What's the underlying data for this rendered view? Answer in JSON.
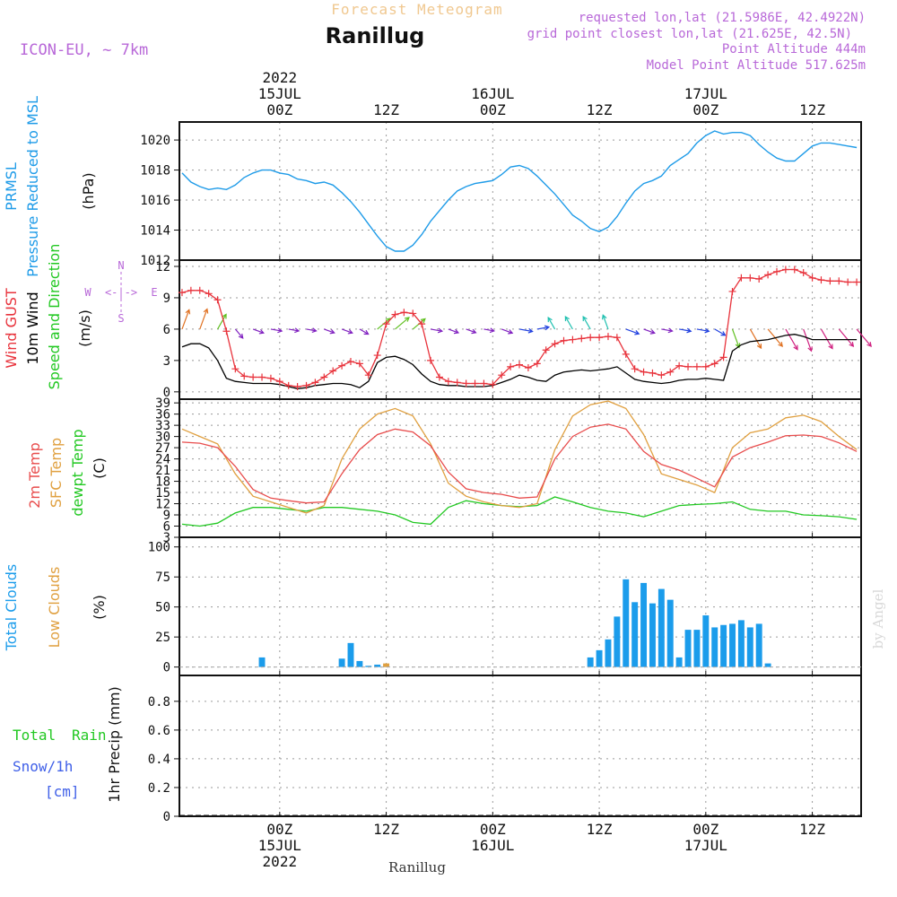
{
  "header": {
    "title_top": "Forecast Meteogram",
    "place": "Ranillug",
    "model": "ICON-EU, ~ 7km",
    "requested": "requested lon,lat (21.5986E, 42.4922N)",
    "grid_point": "grid point closest lon,lat (21.625E, 42.5N)",
    "point_alt": "Point Altitude 444m",
    "model_alt": "Model Point Altitude 517.625m",
    "credit": "by Angel",
    "bottom_place": "Ranillug"
  },
  "time_axis": {
    "top_labels": [
      {
        "day": "15JUL",
        "year": "2022",
        "hour": "00Z",
        "t": 24
      },
      {
        "day": "",
        "year": "",
        "hour": "12Z",
        "t": 36
      },
      {
        "day": "16JUL",
        "year": "",
        "hour": "00Z",
        "t": 48
      },
      {
        "day": "",
        "year": "",
        "hour": "12Z",
        "t": 60
      },
      {
        "day": "17JUL",
        "year": "",
        "hour": "00Z",
        "t": 72
      },
      {
        "day": "",
        "year": "",
        "hour": "12Z",
        "t": 84
      }
    ],
    "t_range": [
      12.7,
      89.5
    ]
  },
  "colors": {
    "pressure": "#1e9be8",
    "gust": "#e8333c",
    "wind": "#000000",
    "temp": "#e84c4c",
    "sfc": "#e0a040",
    "dew": "#22c822",
    "clouds": "#1b9ceb",
    "low_clouds": "#e0a040",
    "label_purple": "#b868d8",
    "rain_green": "#22c822",
    "snow_blue": "#4060e8"
  },
  "chart_data": [
    {
      "type": "line",
      "panel": "pressure",
      "label_line1": "PRMSL",
      "label_line2": "Pressure Reduced to MSL",
      "unit": "(hPa)",
      "ylim": [
        1012,
        1021.2
      ],
      "yticks": [
        "1012",
        "1014",
        "1016",
        "1018",
        "1020"
      ],
      "series": [
        {
          "name": "PRMSL",
          "x": [
            13,
            14,
            15,
            16,
            17,
            18,
            19,
            20,
            21,
            22,
            23,
            24,
            25,
            26,
            27,
            28,
            29,
            30,
            31,
            32,
            33,
            34,
            35,
            36,
            37,
            38,
            39,
            40,
            41,
            42,
            43,
            44,
            45,
            46,
            47,
            48,
            49,
            50,
            51,
            52,
            53,
            54,
            55,
            56,
            57,
            58,
            59,
            60,
            61,
            62,
            63,
            64,
            65,
            66,
            67,
            68,
            69,
            70,
            71,
            72,
            73,
            74,
            75,
            76,
            77,
            78,
            79,
            80,
            81,
            82,
            83,
            84,
            85,
            86,
            87,
            88,
            89
          ],
          "values": [
            1017.8,
            1017.2,
            1016.9,
            1016.7,
            1016.8,
            1016.7,
            1017.0,
            1017.5,
            1017.8,
            1018.0,
            1018.0,
            1017.8,
            1017.7,
            1017.4,
            1017.3,
            1017.1,
            1017.2,
            1017.0,
            1016.5,
            1015.9,
            1015.2,
            1014.4,
            1013.6,
            1012.9,
            1012.6,
            1012.6,
            1013.0,
            1013.7,
            1014.6,
            1015.3,
            1016.0,
            1016.6,
            1016.9,
            1017.1,
            1017.2,
            1017.3,
            1017.7,
            1018.2,
            1018.3,
            1018.1,
            1017.6,
            1017.0,
            1016.4,
            1015.7,
            1015.0,
            1014.6,
            1014.1,
            1013.9,
            1014.2,
            1014.9,
            1015.8,
            1016.6,
            1017.1,
            1017.3,
            1017.6,
            1018.3,
            1018.7,
            1019.1,
            1019.8,
            1020.3,
            1020.6,
            1020.4,
            1020.5,
            1020.5,
            1020.3,
            1019.7,
            1019.2,
            1018.8,
            1018.6,
            1018.6,
            1019.1,
            1019.6,
            1019.8,
            1019.8,
            1019.7,
            1019.6,
            1019.5
          ]
        }
      ]
    },
    {
      "type": "line",
      "panel": "wind",
      "label_gust": "Wind GUST",
      "label_wind": "10m Wind",
      "label_dir": "Speed and Direction",
      "unit": "(m/s)",
      "compass_n": "N",
      "compass_w": "W",
      "compass_e": "E",
      "compass_s": "S",
      "ylim": [
        -0.7,
        12.6
      ],
      "yticks": [
        "0",
        "3",
        "6",
        "9",
        "12"
      ],
      "series": [
        {
          "name": "Wind GUST",
          "x": [
            13,
            14,
            15,
            16,
            17,
            18,
            19,
            20,
            21,
            22,
            23,
            24,
            25,
            26,
            27,
            28,
            29,
            30,
            31,
            32,
            33,
            34,
            35,
            36,
            37,
            38,
            39,
            40,
            41,
            42,
            43,
            44,
            45,
            46,
            47,
            48,
            49,
            50,
            51,
            52,
            53,
            54,
            55,
            56,
            57,
            58,
            59,
            60,
            61,
            62,
            63,
            64,
            65,
            66,
            67,
            68,
            69,
            70,
            71,
            72,
            73,
            74,
            75,
            76,
            77,
            78,
            79,
            80,
            81,
            82,
            83,
            84,
            85,
            86,
            87,
            88,
            89
          ],
          "values": [
            9.5,
            9.7,
            9.7,
            9.4,
            8.8,
            5.8,
            2.2,
            1.5,
            1.4,
            1.4,
            1.3,
            1.0,
            0.6,
            0.5,
            0.6,
            0.9,
            1.4,
            2.0,
            2.5,
            2.9,
            2.7,
            1.6,
            3.5,
            6.5,
            7.4,
            7.6,
            7.5,
            6.5,
            3.0,
            1.4,
            1.0,
            0.9,
            0.8,
            0.8,
            0.8,
            0.7,
            1.6,
            2.4,
            2.6,
            2.3,
            2.7,
            4.0,
            4.6,
            4.9,
            5.0,
            5.1,
            5.2,
            5.2,
            5.3,
            5.2,
            3.6,
            2.2,
            1.9,
            1.8,
            1.6,
            1.9,
            2.5,
            2.4,
            2.4,
            2.4,
            2.7,
            3.3,
            9.6,
            10.9,
            10.9,
            10.8,
            11.2,
            11.5,
            11.7,
            11.7,
            11.4,
            10.9,
            10.7,
            10.6,
            10.6,
            10.5,
            10.5
          ]
        },
        {
          "name": "10m Wind",
          "x": [
            13,
            14,
            15,
            16,
            17,
            18,
            19,
            20,
            21,
            22,
            23,
            24,
            25,
            26,
            27,
            28,
            29,
            30,
            31,
            32,
            33,
            34,
            35,
            36,
            37,
            38,
            39,
            40,
            41,
            42,
            43,
            44,
            45,
            46,
            47,
            48,
            49,
            50,
            51,
            52,
            53,
            54,
            55,
            56,
            57,
            58,
            59,
            60,
            61,
            62,
            63,
            64,
            65,
            66,
            67,
            68,
            69,
            70,
            71,
            72,
            73,
            74,
            75,
            76,
            77,
            78,
            79,
            80,
            81,
            82,
            83,
            84,
            85,
            86,
            87,
            88,
            89
          ],
          "values": [
            4.3,
            4.6,
            4.6,
            4.2,
            3.0,
            1.3,
            1.0,
            0.9,
            0.8,
            0.8,
            0.8,
            0.7,
            0.5,
            0.3,
            0.4,
            0.6,
            0.7,
            0.8,
            0.8,
            0.7,
            0.4,
            1.0,
            2.8,
            3.3,
            3.4,
            3.1,
            2.6,
            1.7,
            1.0,
            0.7,
            0.6,
            0.6,
            0.5,
            0.5,
            0.5,
            0.6,
            0.9,
            1.2,
            1.6,
            1.4,
            1.1,
            1.0,
            1.6,
            1.9,
            2.0,
            2.1,
            2.0,
            2.1,
            2.2,
            2.4,
            1.8,
            1.2,
            1.0,
            0.9,
            0.8,
            0.9,
            1.1,
            1.2,
            1.2,
            1.3,
            1.2,
            1.1,
            3.9,
            4.5,
            4.8,
            4.9,
            5.0,
            5.2,
            5.4,
            5.5,
            5.3,
            5.0,
            5.0,
            5.0,
            5.0,
            5.0,
            5.0
          ]
        }
      ],
      "direction_deg": {
        "x": [
          13,
          15,
          17,
          19,
          21,
          23,
          25,
          27,
          29,
          31,
          33,
          35,
          37,
          39,
          41,
          43,
          45,
          47,
          49,
          51,
          53,
          55,
          57,
          59,
          61,
          63,
          65,
          67,
          69,
          71,
          73,
          75,
          77,
          79,
          81,
          83,
          85,
          87,
          89
        ],
        "values": [
          200,
          200,
          210,
          320,
          290,
          280,
          280,
          280,
          290,
          290,
          300,
          230,
          230,
          230,
          280,
          290,
          290,
          280,
          290,
          280,
          260,
          150,
          150,
          150,
          160,
          290,
          290,
          280,
          280,
          280,
          300,
          340,
          330,
          320,
          330,
          340,
          330,
          320,
          320
        ]
      }
    },
    {
      "type": "line",
      "panel": "temperature",
      "label_t2m": "2m Temp",
      "label_sfc": "SFC Temp",
      "label_dew": "dewpt Temp",
      "unit": "(C)",
      "ylim": [
        3,
        40
      ],
      "yticks": [
        "3",
        "6",
        "9",
        "12",
        "15",
        "18",
        "21",
        "24",
        "27",
        "30",
        "33",
        "36",
        "39"
      ],
      "series": [
        {
          "name": "2m Temp",
          "x": [
            13,
            15,
            17,
            19,
            21,
            23,
            25,
            27,
            29,
            31,
            33,
            35,
            37,
            39,
            41,
            43,
            45,
            47,
            49,
            51,
            53,
            55,
            57,
            59,
            61,
            63,
            65,
            67,
            69,
            71,
            73,
            75,
            77,
            79,
            81,
            83,
            85,
            87,
            89
          ],
          "values": [
            28.5,
            28.2,
            27.0,
            22.0,
            15.8,
            13.5,
            12.8,
            12.2,
            12.5,
            20.0,
            26.5,
            30.5,
            32.0,
            31.2,
            27.5,
            20.5,
            16.0,
            15.0,
            14.5,
            13.5,
            13.8,
            24.0,
            30.0,
            32.5,
            33.3,
            32.0,
            26.0,
            22.5,
            21.0,
            18.8,
            16.5,
            24.5,
            27.0,
            28.5,
            30.2,
            30.4,
            30.0,
            28.3,
            26.0
          ]
        },
        {
          "name": "SFC Temp",
          "x": [
            13,
            15,
            17,
            19,
            21,
            23,
            25,
            27,
            29,
            31,
            33,
            35,
            37,
            39,
            41,
            43,
            45,
            47,
            49,
            51,
            53,
            55,
            57,
            59,
            61,
            63,
            65,
            67,
            69,
            71,
            73,
            75,
            77,
            79,
            81,
            83,
            85,
            87,
            89
          ],
          "values": [
            32.0,
            30.0,
            28.0,
            20.0,
            14.0,
            12.5,
            11.0,
            9.5,
            11.5,
            24.0,
            32.0,
            36.0,
            37.5,
            35.5,
            28.0,
            17.5,
            14.0,
            12.5,
            11.5,
            11.0,
            12.0,
            26.5,
            35.5,
            38.5,
            39.5,
            37.5,
            30.5,
            20.0,
            18.5,
            17.0,
            15.0,
            27.0,
            31.0,
            32.0,
            35.0,
            35.7,
            34.0,
            30.0,
            26.5
          ]
        },
        {
          "name": "dewpt Temp",
          "x": [
            13,
            15,
            17,
            19,
            21,
            23,
            25,
            27,
            29,
            31,
            33,
            35,
            37,
            39,
            41,
            43,
            45,
            47,
            49,
            51,
            53,
            55,
            57,
            59,
            61,
            63,
            65,
            67,
            69,
            71,
            73,
            75,
            77,
            79,
            81,
            83,
            85,
            87,
            89
          ],
          "values": [
            6.5,
            6.0,
            6.8,
            9.5,
            11.0,
            11.0,
            10.5,
            10.0,
            11.0,
            11.0,
            10.5,
            10.0,
            9.0,
            7.0,
            6.5,
            11.0,
            12.8,
            12.0,
            11.5,
            11.2,
            11.5,
            13.8,
            12.5,
            11.0,
            10.0,
            9.5,
            8.5,
            10.0,
            11.5,
            11.8,
            12.0,
            12.5,
            10.5,
            10.0,
            10.0,
            9.0,
            8.8,
            8.5,
            7.8
          ]
        }
      ]
    },
    {
      "type": "bar",
      "panel": "clouds",
      "label_total": "Total Clouds",
      "label_low": "Low Clouds",
      "unit": "(%)",
      "ylim": [
        -7,
        108
      ],
      "yticks": [
        "0",
        "25",
        "50",
        "75",
        "100"
      ],
      "series": [
        {
          "name": "Total Clouds",
          "x": [
            22,
            31,
            32,
            33,
            34,
            35,
            36,
            59,
            60,
            61,
            62,
            63,
            64,
            65,
            66,
            67,
            68,
            69,
            70,
            71,
            72,
            73,
            74,
            75,
            76,
            77,
            78,
            79,
            80,
            81,
            82,
            83
          ],
          "values": [
            8,
            7,
            20,
            5,
            1,
            2,
            1,
            8,
            14,
            23,
            42,
            73,
            54,
            70,
            53,
            65,
            56,
            8,
            31,
            31,
            43,
            33,
            35,
            36,
            39,
            33,
            36,
            3,
            0,
            0,
            0,
            0
          ]
        },
        {
          "name": "Low Clouds",
          "x": [
            36
          ],
          "values": [
            3
          ]
        }
      ]
    },
    {
      "type": "bar",
      "panel": "precip",
      "label_total": "Total",
      "label_rain": "Rain",
      "label_snow": "Snow/1h",
      "label_cm": "[cm]",
      "unit": "1hr Precip (mm)",
      "ylim": [
        0,
        0.98
      ],
      "yticks": [
        "0",
        "0.2",
        "0.4",
        "0.6",
        "0.8"
      ],
      "series": [
        {
          "name": "1hr Precip",
          "x": [],
          "values": []
        }
      ]
    }
  ]
}
